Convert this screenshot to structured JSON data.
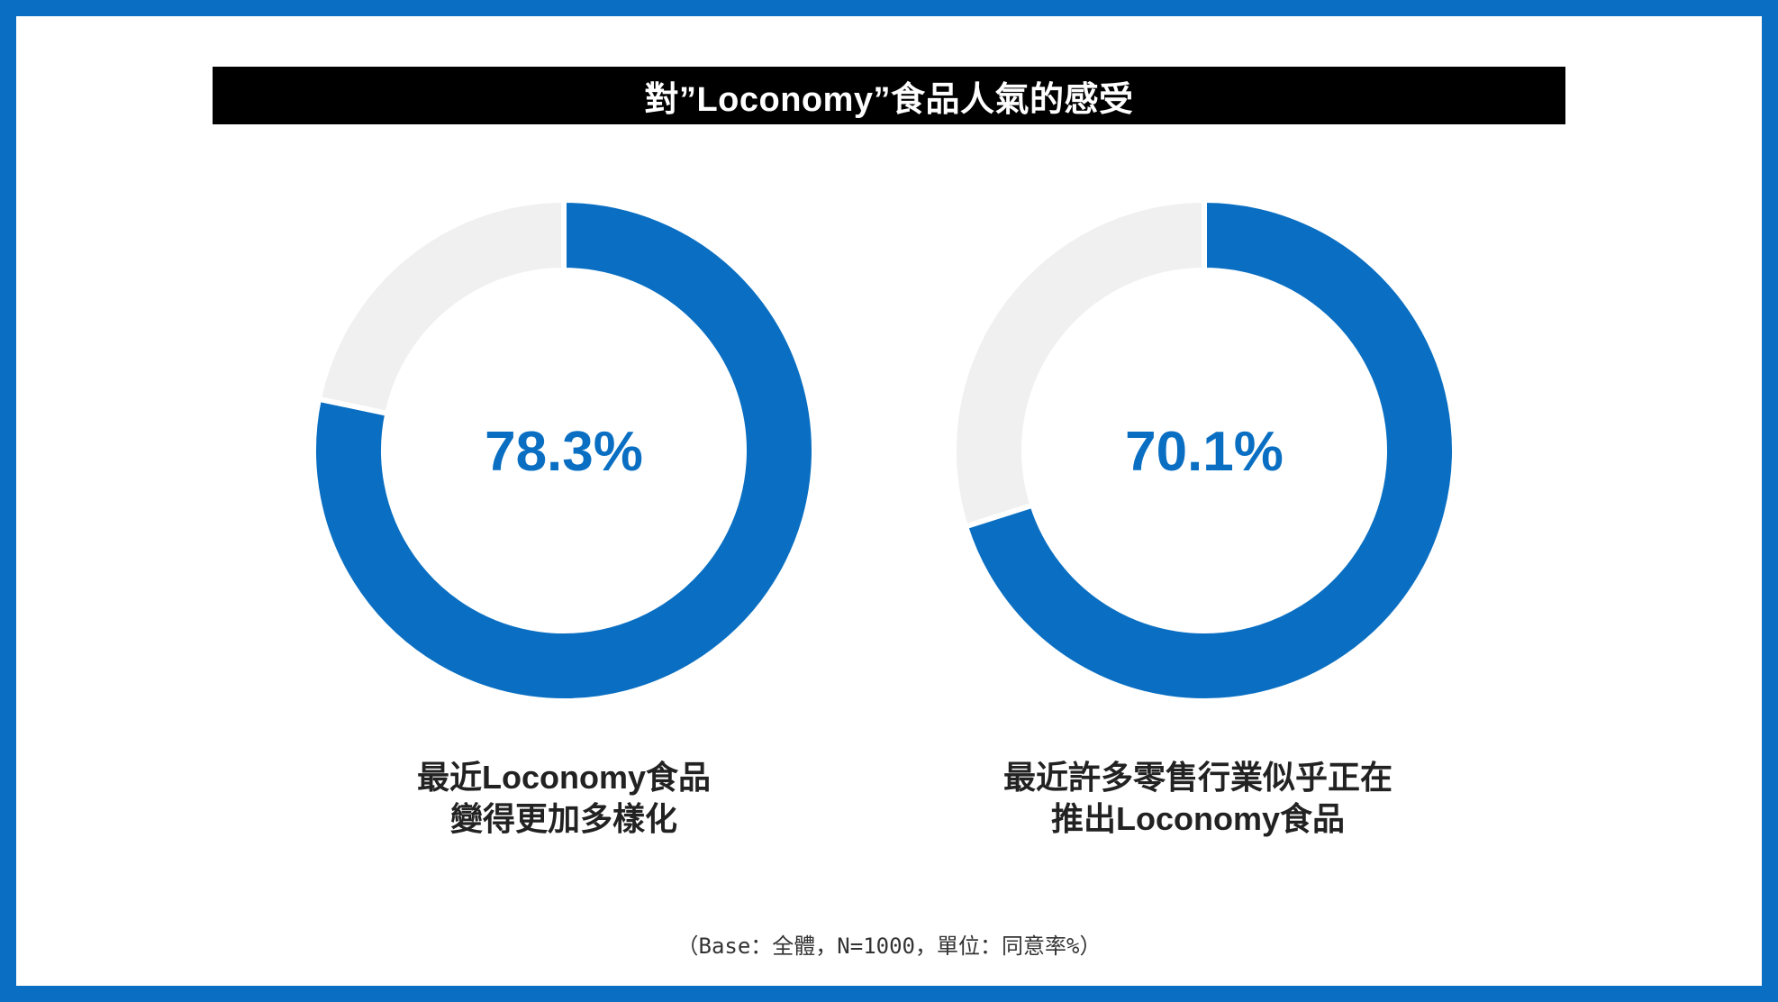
{
  "colors": {
    "frame": "#0a6fc2",
    "accent": "#0a6fc2",
    "remainder": "#f0f0f0",
    "title_bg": "#000000",
    "title_fg": "#ffffff"
  },
  "title": "對”Loconomy”食品人氣的感受",
  "chart_data": [
    {
      "type": "pie",
      "variant": "donut",
      "value": 78.3,
      "value_label": "78.3%",
      "remainder": 21.7,
      "caption": [
        "最近Loconomy食品",
        "變得更加多樣化"
      ]
    },
    {
      "type": "pie",
      "variant": "donut",
      "value": 70.1,
      "value_label": "70.1%",
      "remainder": 29.9,
      "caption": [
        "最近許多零售行業似乎正在",
        "推出Loconomy食品"
      ]
    }
  ],
  "footnote": "（Base：全體，N=1000，單位：同意率%）"
}
